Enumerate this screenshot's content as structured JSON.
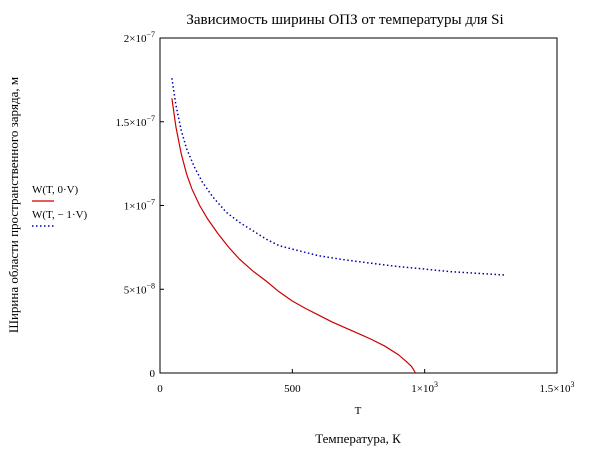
{
  "chart_data": {
    "type": "line",
    "title": "Зависимость ширины ОПЗ от температуры для Si",
    "ylabel": "Ширина области пространственного заряда, м",
    "xlabel": "Температура, К",
    "x_variable": "T",
    "xlim": [
      0,
      1500
    ],
    "ylim": [
      0,
      2e-07
    ],
    "x_ticks": [
      {
        "value": 0,
        "label": "0"
      },
      {
        "value": 500,
        "label": "500"
      },
      {
        "value": 1000,
        "label": "1×10",
        "exp": "3"
      },
      {
        "value": 1500,
        "label": "1.5×10",
        "exp": "3"
      }
    ],
    "y_ticks": [
      {
        "value": 0,
        "label": "0"
      },
      {
        "value": 5e-08,
        "label": "5×10",
        "exp": "−8"
      },
      {
        "value": 1e-07,
        "label": "1×10",
        "exp": "−7"
      },
      {
        "value": 1.5e-07,
        "label": "1.5×10",
        "exp": "−7"
      },
      {
        "value": 2e-07,
        "label": "2×10",
        "exp": "−7"
      }
    ],
    "grid": false,
    "legend_position": "left",
    "series": [
      {
        "name": "W(T, 0·V)",
        "color": "#cc0000",
        "style": "solid",
        "x": [
          45,
          60,
          80,
          100,
          120,
          150,
          180,
          220,
          260,
          300,
          350,
          400,
          450,
          500,
          550,
          600,
          650,
          700,
          750,
          800,
          850,
          900,
          930,
          950,
          960,
          965
        ],
        "y": [
          1.64e-07,
          1.47e-07,
          1.31e-07,
          1.19e-07,
          1.1e-07,
          1e-07,
          9.2e-08,
          8.3e-08,
          7.5e-08,
          6.8e-08,
          6.1e-08,
          5.5e-08,
          4.85e-08,
          4.3e-08,
          3.85e-08,
          3.45e-08,
          3.05e-08,
          2.7e-08,
          2.35e-08,
          2e-08,
          1.6e-08,
          1.1e-08,
          7e-09,
          4e-09,
          1.5e-09,
          0
        ]
      },
      {
        "name": "W(T, − 1·V)",
        "color": "#0000aa",
        "style": "dotted",
        "x": [
          45,
          60,
          80,
          100,
          130,
          160,
          200,
          250,
          300,
          350,
          400,
          450,
          500,
          600,
          700,
          800,
          900,
          1000,
          1100,
          1200,
          1300
        ],
        "y": [
          1.76e-07,
          1.6e-07,
          1.45e-07,
          1.34e-07,
          1.23e-07,
          1.14e-07,
          1.05e-07,
          9.6e-08,
          9e-08,
          8.5e-08,
          8e-08,
          7.6e-08,
          7.4e-08,
          7e-08,
          6.75e-08,
          6.55e-08,
          6.35e-08,
          6.2e-08,
          6.05e-08,
          5.95e-08,
          5.85e-08
        ]
      }
    ]
  }
}
